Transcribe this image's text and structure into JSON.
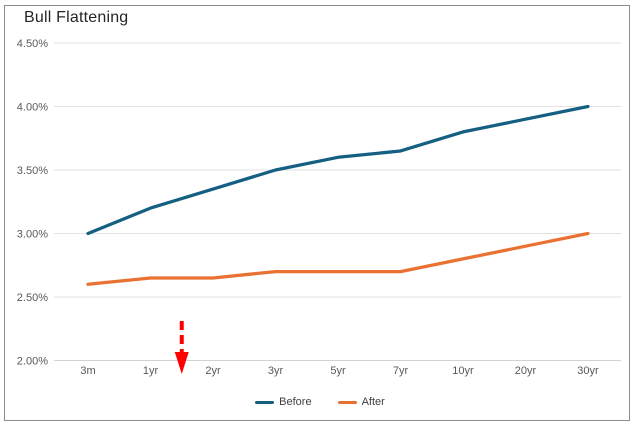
{
  "title": "Bull Flattening",
  "colors": {
    "before": "#156082",
    "after": "#E97132",
    "arrow": "#FF0000",
    "grid": "#e2e2e2",
    "axis_line": "#d2d2d2",
    "axis_text": "#595959",
    "title_text": "#262626",
    "legend_text": "#3f3f3f",
    "border": "#8c8c8c"
  },
  "chart_data": {
    "type": "line",
    "title": "Bull Flattening",
    "categories": [
      "3m",
      "1yr",
      "2yr",
      "3yr",
      "5yr",
      "7yr",
      "10yr",
      "20yr",
      "30yr"
    ],
    "series": [
      {
        "name": "Before",
        "color_key": "before",
        "values": [
          3.0,
          3.2,
          3.35,
          3.5,
          3.6,
          3.65,
          3.8,
          3.9,
          4.0
        ]
      },
      {
        "name": "After",
        "color_key": "after",
        "values": [
          2.6,
          2.65,
          2.65,
          2.7,
          2.7,
          2.7,
          2.8,
          2.9,
          3.0
        ]
      }
    ],
    "y_ticks": [
      "4.50%",
      "4.00%",
      "3.50%",
      "3.00%",
      "2.50%",
      "2.00%"
    ],
    "y_tick_values": [
      4.5,
      4.0,
      3.5,
      3.0,
      2.5,
      2.0
    ],
    "ylim": [
      2.0,
      4.5
    ],
    "xlabel": "",
    "ylabel": "",
    "grid": "horizontal",
    "legend_position": "bottom",
    "annotation": {
      "type": "arrow-down",
      "between_categories": [
        "1yr",
        "2yr"
      ],
      "style": "dashed",
      "color_key": "arrow"
    }
  }
}
